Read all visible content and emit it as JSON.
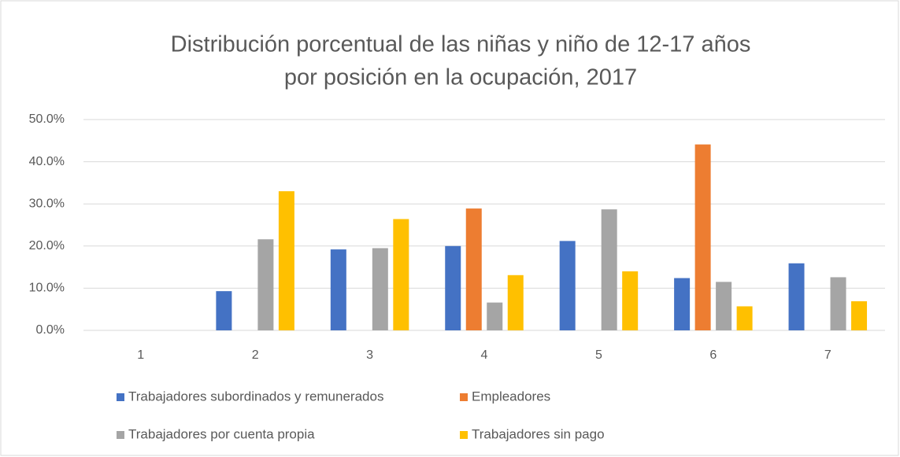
{
  "chart_data": {
    "type": "bar",
    "title": [
      "Distribución porcentual de las niñas y niño de 12-17 años",
      "por posición en la ocupación, 2017"
    ],
    "categories": [
      "1",
      "2",
      "3",
      "4",
      "5",
      "6",
      "7"
    ],
    "series": [
      {
        "name": "Trabajadores subordinados y remunerados",
        "color": "#4472c4",
        "values": [
          null,
          9.3,
          19.2,
          20.0,
          21.2,
          12.4,
          15.9
        ]
      },
      {
        "name": "Empleadores",
        "color": "#ed7d31",
        "values": [
          null,
          null,
          null,
          28.9,
          null,
          44.1,
          null
        ]
      },
      {
        "name": "Trabajadores por cuenta propia",
        "color": "#a5a5a5",
        "values": [
          null,
          21.6,
          19.5,
          6.6,
          28.7,
          11.5,
          12.6
        ]
      },
      {
        "name": "Trabajadores sin pago",
        "color": "#ffc000",
        "values": [
          null,
          33.0,
          26.4,
          13.1,
          14.0,
          5.7,
          6.9
        ]
      }
    ],
    "ylim": [
      0,
      50
    ],
    "yticks": [
      {
        "value": 0,
        "label": "0.0%"
      },
      {
        "value": 10,
        "label": "10.0%"
      },
      {
        "value": 20,
        "label": "20.0%"
      },
      {
        "value": 30,
        "label": "30.0%"
      },
      {
        "value": 40,
        "label": "40.0%"
      },
      {
        "value": 50,
        "label": "50.0%"
      }
    ],
    "grid": true,
    "legend": "bottom"
  }
}
